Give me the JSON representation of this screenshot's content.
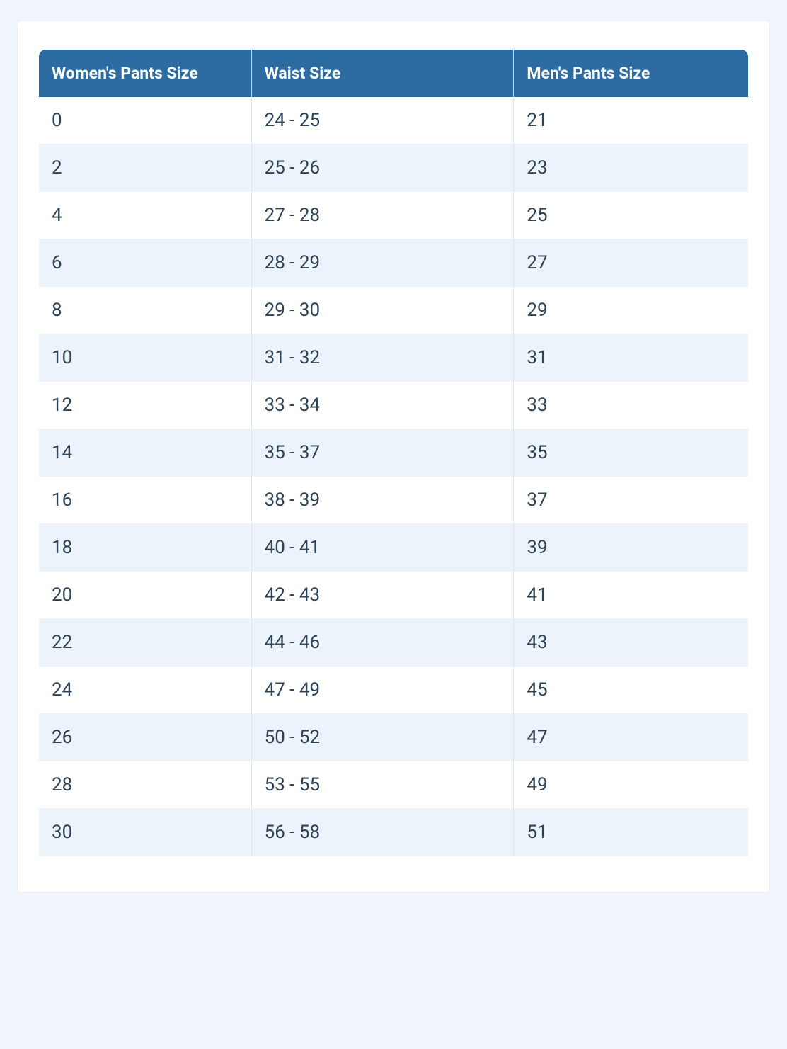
{
  "page": {
    "background_color": "#f0f5fb",
    "card_background": "#ffffff"
  },
  "table": {
    "type": "table",
    "header_bg": "#2d6ca2",
    "header_text_color": "#ffffff",
    "header_font_size": 23,
    "header_font_weight": 700,
    "body_font_size": 26,
    "body_text_color": "#2f4356",
    "row_bg_odd": "#ffffff",
    "row_bg_even": "#edf3fb",
    "border_color": "#dbe5f1",
    "header_border_radius": 10,
    "columns": [
      {
        "label": "Women's Pants Size",
        "width_pct": 30
      },
      {
        "label": "Waist Size",
        "width_pct": 37
      },
      {
        "label": "Men's Pants Size",
        "width_pct": 33
      }
    ],
    "rows": [
      [
        "0",
        "24 - 25",
        "21"
      ],
      [
        "2",
        "25 - 26",
        "23"
      ],
      [
        "4",
        "27 - 28",
        "25"
      ],
      [
        "6",
        "28 - 29",
        "27"
      ],
      [
        "8",
        "29 - 30",
        "29"
      ],
      [
        "10",
        "31 - 32",
        "31"
      ],
      [
        "12",
        "33 - 34",
        "33"
      ],
      [
        "14",
        "35 - 37",
        "35"
      ],
      [
        "16",
        "38 - 39",
        "37"
      ],
      [
        "18",
        "40 - 41",
        "39"
      ],
      [
        "20",
        "42 - 43",
        "41"
      ],
      [
        "22",
        "44 - 46",
        "43"
      ],
      [
        "24",
        "47 - 49",
        "45"
      ],
      [
        "26",
        "50 - 52",
        "47"
      ],
      [
        "28",
        "53 - 55",
        "49"
      ],
      [
        "30",
        "56 - 58",
        "51"
      ]
    ]
  }
}
